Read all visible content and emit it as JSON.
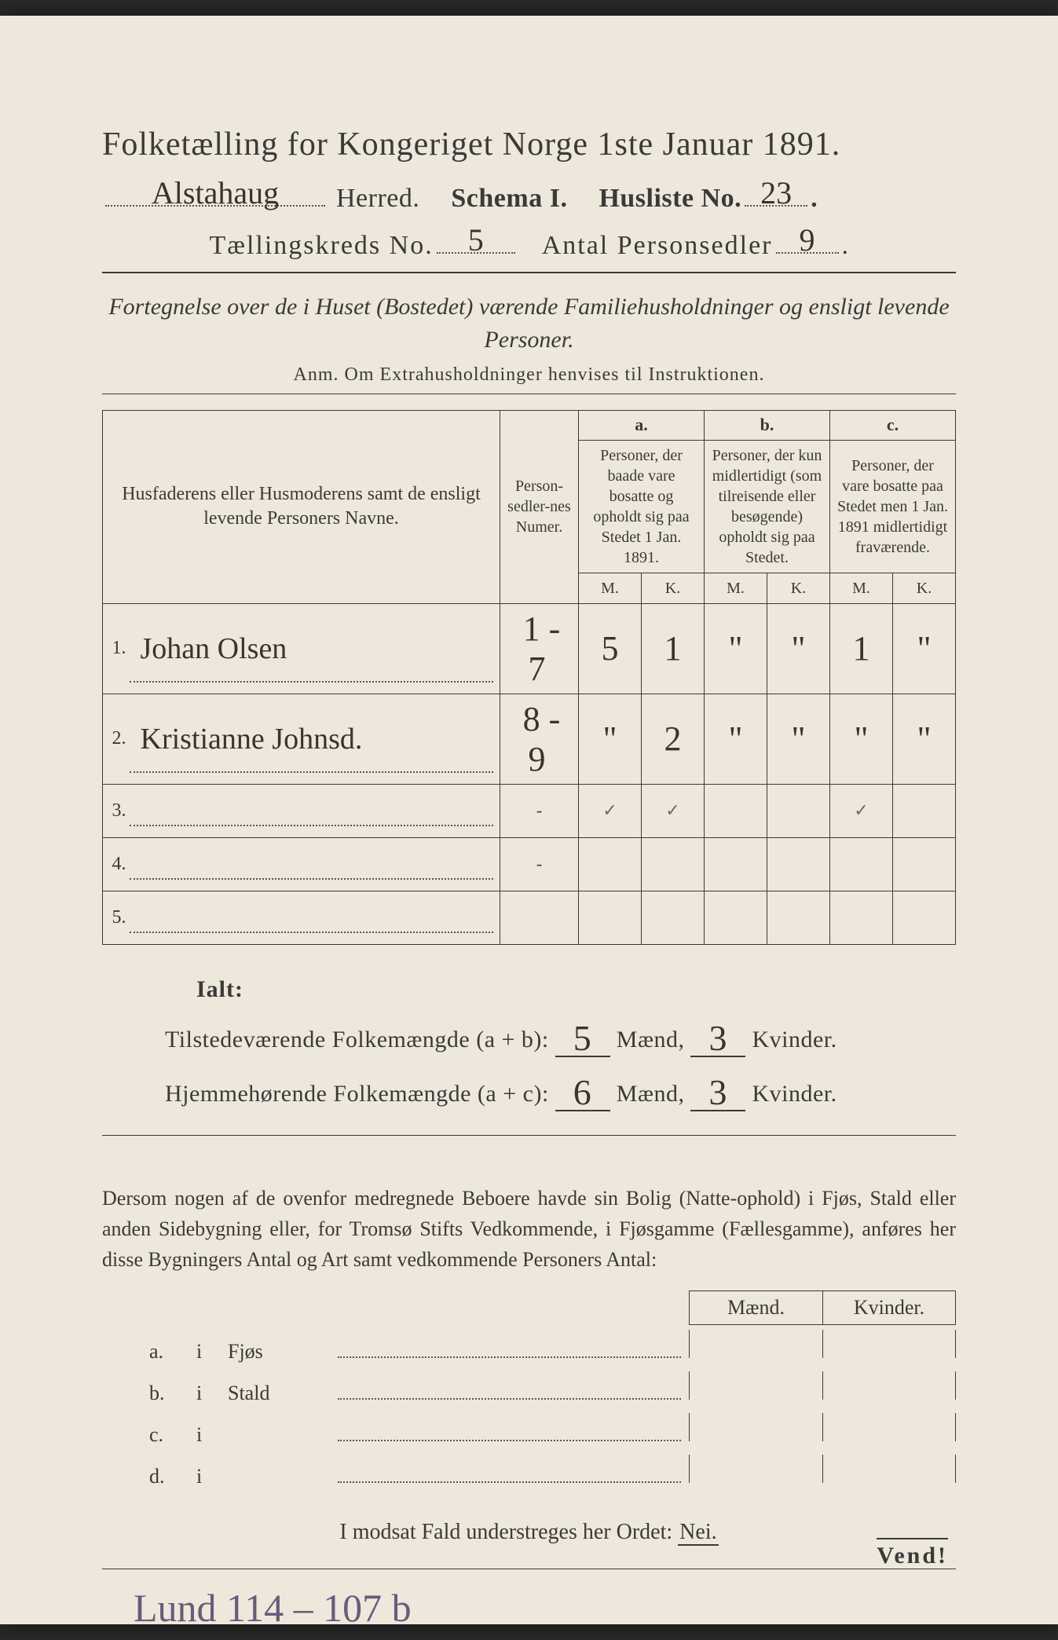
{
  "colors": {
    "page_bg": "#ede8db",
    "ink": "#3a3a38",
    "handwriting": "#3a332e",
    "handwriting_purple": "#6b5a7a"
  },
  "title": "Folketælling for Kongeriget Norge 1ste Januar 1891.",
  "header": {
    "herred_value": "Alstahaug",
    "herred_label": "Herred.",
    "schema_label": "Schema I.",
    "husliste_label": "Husliste No.",
    "husliste_value": "23",
    "kreds_label": "Tællingskreds No.",
    "kreds_value": "5",
    "antal_label": "Antal Personsedler",
    "antal_value": "9"
  },
  "subtitle": "Fortegnelse over de i Huset (Bostedet) værende Familiehusholdninger og ensligt levende Personer.",
  "anm": "Anm. Om Extrahusholdninger henvises til Instruktionen.",
  "table": {
    "col_name": "Husfaderens eller Husmoderens samt de ensligt levende Personers Navne.",
    "col_num": "Person-sedler-nes Numer.",
    "group_a_letter": "a.",
    "group_a": "Personer, der baade vare bosatte og opholdt sig paa Stedet 1 Jan. 1891.",
    "group_b_letter": "b.",
    "group_b": "Personer, der kun midlertidigt (som tilreisende eller besøgende) opholdt sig paa Stedet.",
    "group_c_letter": "c.",
    "group_c": "Personer, der vare bosatte paa Stedet men 1 Jan. 1891 midlertidigt fraværende.",
    "mk_m": "M.",
    "mk_k": "K.",
    "rows": [
      {
        "n": "1.",
        "name": "Johan Olsen",
        "num": "1 - 7",
        "a_m": "5",
        "a_k": "1",
        "b_m": "\"",
        "b_k": "\"",
        "c_m": "1",
        "c_k": "\""
      },
      {
        "n": "2.",
        "name": "Kristianne Johnsd.",
        "num": "8 - 9",
        "a_m": "\"",
        "a_k": "2",
        "b_m": "\"",
        "b_k": "\"",
        "c_m": "\"",
        "c_k": "\""
      },
      {
        "n": "3.",
        "name": "",
        "num": "-",
        "a_m": "✓",
        "a_k": "✓",
        "b_m": "",
        "b_k": "",
        "c_m": "✓",
        "c_k": ""
      },
      {
        "n": "4.",
        "name": "",
        "num": "-",
        "a_m": "",
        "a_k": "",
        "b_m": "",
        "b_k": "",
        "c_m": "",
        "c_k": ""
      },
      {
        "n": "5.",
        "name": "",
        "num": "",
        "a_m": "",
        "a_k": "",
        "b_m": "",
        "b_k": "",
        "c_m": "",
        "c_k": ""
      }
    ]
  },
  "totals": {
    "ialt": "Ialt:",
    "line1_label": "Tilstedeværende Folkemængde (a + b):",
    "line1_m": "5",
    "line1_k": "3",
    "line2_label": "Hjemmehørende Folkemængde (a + c):",
    "line2_m": "6",
    "line2_k": "3",
    "maend": "Mænd,",
    "kvinder": "Kvinder."
  },
  "para": "Dersom nogen af de ovenfor medregnede Beboere havde sin Bolig (Natte-ophold) i Fjøs, Stald eller anden Sidebygning eller, for Tromsø Stifts Vedkommende, i Fjøsgamme (Fællesgamme), anføres her disse Bygningers Antal og Art samt vedkommende Personers Antal:",
  "mk_header": {
    "m": "Mænd.",
    "k": "Kvinder."
  },
  "byg_rows": [
    {
      "lbl": "a.",
      "i": "i",
      "type": "Fjøs"
    },
    {
      "lbl": "b.",
      "i": "i",
      "type": "Stald"
    },
    {
      "lbl": "c.",
      "i": "i",
      "type": ""
    },
    {
      "lbl": "d.",
      "i": "i",
      "type": ""
    }
  ],
  "nei_line_pre": "I modsat Fald understreges her Ordet: ",
  "nei": "Nei.",
  "bottom_note": "Lund 114 – 107 b",
  "vend": "Vend!"
}
